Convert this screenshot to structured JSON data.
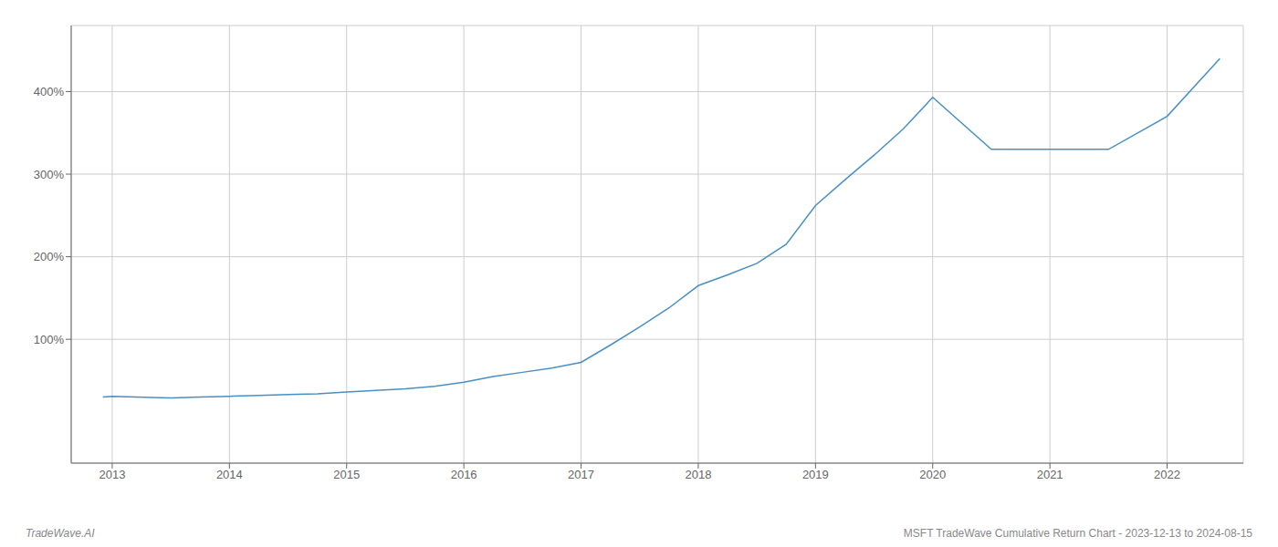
{
  "chart_data": {
    "type": "line",
    "title": "MSFT TradeWave Cumulative Return Chart - 2023-12-13 to 2024-08-15",
    "annotations": [
      "TradeWave.AI"
    ],
    "x": [
      2012.92,
      2013.0,
      2013.2,
      2013.5,
      2013.75,
      2014.0,
      2014.25,
      2014.5,
      2014.75,
      2015.0,
      2015.25,
      2015.5,
      2015.75,
      2016.0,
      2016.25,
      2016.5,
      2016.75,
      2017.0,
      2017.25,
      2017.5,
      2017.75,
      2018.0,
      2018.25,
      2018.5,
      2018.75,
      2019.0,
      2019.25,
      2019.5,
      2019.75,
      2020.0,
      2020.5,
      2021.0,
      2021.5,
      2022.0,
      2022.45
    ],
    "values": [
      30,
      31,
      30,
      29,
      30,
      31,
      32,
      33,
      34,
      36,
      38,
      40,
      43,
      48,
      55,
      60,
      65,
      72,
      93,
      115,
      138,
      165,
      178,
      192,
      215,
      262,
      293,
      323,
      355,
      393,
      330,
      330,
      330,
      370,
      440
    ],
    "color": "#4a8fc4",
    "xlim": [
      2012.65,
      2022.65
    ],
    "ylim": [
      -50,
      480
    ],
    "xticks": [
      2013,
      2014,
      2015,
      2016,
      2017,
      2018,
      2019,
      2020,
      2021,
      2022
    ],
    "yticks": [
      {
        "value": 100,
        "label": "100%"
      },
      {
        "value": 200,
        "label": "200%"
      },
      {
        "value": 300,
        "label": "300%"
      },
      {
        "value": 400,
        "label": "400%"
      }
    ],
    "grid": true
  }
}
